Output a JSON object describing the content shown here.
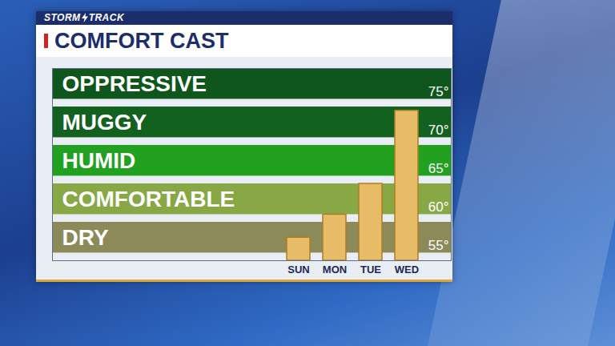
{
  "chart_data": {
    "type": "bar",
    "title": "COMFORT CAST",
    "subtitle": "STORM TRACK",
    "categories": [
      "SUN",
      "MON",
      "TUE",
      "WED"
    ],
    "values": [
      56,
      59,
      63,
      72.5
    ],
    "color": "#e6bd66",
    "ylim": [
      53,
      78
    ],
    "yticks": [
      {
        "value": 55,
        "label": "55°"
      },
      {
        "value": 60,
        "label": "60°"
      },
      {
        "value": 65,
        "label": "65°"
      },
      {
        "value": 70,
        "label": "70°"
      },
      {
        "value": 75,
        "label": "75°"
      }
    ],
    "grid": false,
    "bands": [
      {
        "label": "OPPRESSIVE",
        "from": 74,
        "to": 78,
        "color": "#0f561c"
      },
      {
        "label": "MUGGY",
        "from": 69,
        "to": 73,
        "color": "#12611f"
      },
      {
        "label": "HUMID",
        "from": 64,
        "to": 68,
        "color": "#22a01f"
      },
      {
        "label": "COMFORTABLE",
        "from": 59,
        "to": 63,
        "color": "#88a846"
      },
      {
        "label": "DRY",
        "from": 54,
        "to": 58,
        "color": "#8b8a58"
      }
    ]
  }
}
